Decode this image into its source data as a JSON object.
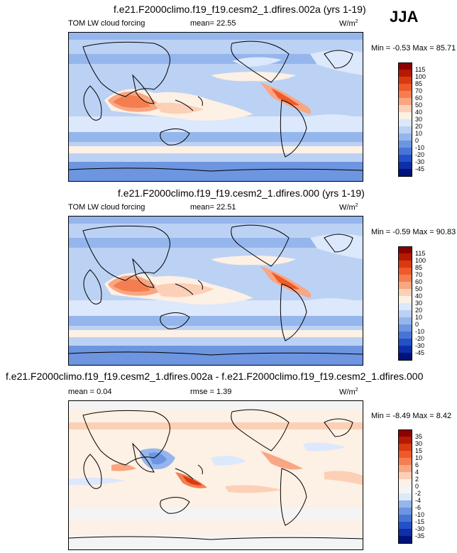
{
  "season": "JJA",
  "panels": [
    {
      "title": "f.e21.F2000climo.f19_f19.cesm2_1.dfires.002a (yrs 1-19)",
      "variable": "TOM LW cloud forcing",
      "stat_label": "mean=",
      "stat_value": "22.55",
      "units": "W/m",
      "units_exp": "2",
      "min_label": "Min =",
      "min_value": "-0.53",
      "max_label": "Max =",
      "max_value": "85.71",
      "colorbar": {
        "levels": [
          "115",
          "100",
          "85",
          "70",
          "60",
          "50",
          "40",
          "30",
          "20",
          "10",
          "0",
          "-10",
          "-20",
          "-30",
          "-45"
        ],
        "colors": [
          "#8b0000",
          "#b51a00",
          "#d83a10",
          "#ee5a2a",
          "#f47e4f",
          "#f9a683",
          "#fcd0b6",
          "#fdf0e4",
          "#dce8fb",
          "#bcd2f4",
          "#95b6ec",
          "#6d95e0",
          "#4874d6",
          "#2450c8",
          "#0e2fa8",
          "#00137a"
        ]
      }
    },
    {
      "title": "f.e21.F2000climo.f19_f19.cesm2_1.dfires.000 (yrs 1-19)",
      "variable": "TOM LW cloud forcing",
      "stat_label": "mean=",
      "stat_value": "22.51",
      "units": "W/m",
      "units_exp": "2",
      "min_label": "Min =",
      "min_value": "-0.59",
      "max_label": "Max =",
      "max_value": "90.83",
      "colorbar": {
        "levels": [
          "115",
          "100",
          "85",
          "70",
          "60",
          "50",
          "40",
          "30",
          "20",
          "10",
          "0",
          "-10",
          "-20",
          "-30",
          "-45"
        ],
        "colors": [
          "#8b0000",
          "#b51a00",
          "#d83a10",
          "#ee5a2a",
          "#f47e4f",
          "#f9a683",
          "#fcd0b6",
          "#fdf0e4",
          "#dce8fb",
          "#bcd2f4",
          "#95b6ec",
          "#6d95e0",
          "#4874d6",
          "#2450c8",
          "#0e2fa8",
          "#00137a"
        ]
      }
    },
    {
      "title": "f.e21.F2000climo.f19_f19.cesm2_1.dfires.002a - f.e21.F2000climo.f19_f19.cesm2_1.dfires.000",
      "mean_label": "mean =",
      "mean_value": "0.04",
      "stat_label": "rmse =",
      "stat_value": "1.39",
      "units": "W/m",
      "units_exp": "2",
      "min_label": "Min =",
      "min_value": "-8.49",
      "max_label": "Max =",
      "max_value": "8.42",
      "colorbar": {
        "levels": [
          "35",
          "30",
          "15",
          "10",
          "6",
          "4",
          "2",
          "0",
          "-2",
          "-4",
          "-6",
          "-10",
          "-15",
          "-30",
          "-35"
        ],
        "colors": [
          "#8b0000",
          "#b51a00",
          "#d83a10",
          "#ee5a2a",
          "#f47e4f",
          "#f9a683",
          "#fcd0b6",
          "#fdf0e4",
          "#f4f4f4",
          "#dce8fb",
          "#95b6ec",
          "#6d95e0",
          "#4874d6",
          "#2450c8",
          "#0e2fa8",
          "#00137a"
        ]
      }
    }
  ]
}
